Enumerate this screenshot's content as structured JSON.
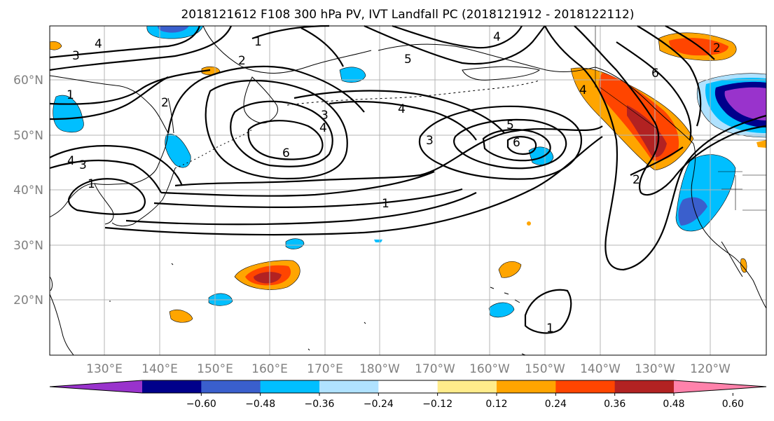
{
  "title": "2018121612 F108 300 hPa PV, IVT Landfall PC (2018121912 - 2018122112)",
  "longitude_labels": [
    "130°E",
    "140°E",
    "150°E",
    "160°E",
    "170°E",
    "180°W",
    "170°W",
    "160°W",
    "150°W",
    "140°W",
    "130°W",
    "120°W"
  ],
  "latitude_labels": [
    "60°N",
    "50°N",
    "40°N",
    "30°N",
    "20°N"
  ],
  "colorbar": {
    "colors": [
      "#9933cc",
      "#00008b",
      "#3a5fcd",
      "#00bfff",
      "#b0e2ff",
      "#ffffff",
      "#ffec8b",
      "#ffa500",
      "#ff4500",
      "#b22222",
      "#ff82ab"
    ],
    "tick_labels": [
      "−0.60",
      "−0.48",
      "−0.36",
      "−0.24",
      "−0.12",
      "0.12",
      "0.24",
      "0.36",
      "0.48",
      "0.60"
    ]
  },
  "contour_labels": [
    "4",
    "3",
    "1",
    "2",
    "4",
    "1",
    "3",
    "2",
    "1",
    "4",
    "3",
    "6",
    "4",
    "5",
    "5",
    "3",
    "4",
    "6",
    "2",
    "1",
    "6",
    "4",
    "2",
    "1"
  ]
}
